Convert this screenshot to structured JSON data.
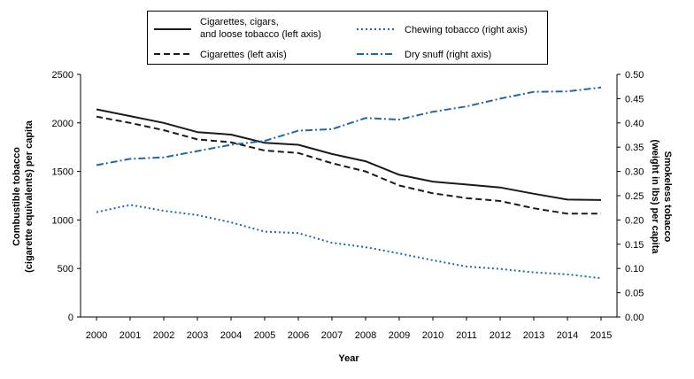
{
  "chart_data": {
    "type": "line",
    "xlabel": "Year",
    "ylabel_left": [
      "Combustible tobacco",
      "(cigarette equivalents) per capita"
    ],
    "ylabel_right": [
      "Smokeless tobacco",
      "(weight in lbs) per capita"
    ],
    "x": [
      "2000",
      "2001",
      "2002",
      "2003",
      "2004",
      "2005",
      "2006",
      "2007",
      "2008",
      "2009",
      "2010",
      "2011",
      "2012",
      "2013",
      "2014",
      "2015"
    ],
    "ylim_left": [
      0,
      2500
    ],
    "ylim_right": [
      0,
      0.5
    ],
    "yticks_left": [
      "0",
      "500",
      "1000",
      "1500",
      "2000",
      "2500"
    ],
    "yticks_right": [
      "0.00",
      "0.05",
      "0.10",
      "0.15",
      "0.20",
      "0.25",
      "0.30",
      "0.35",
      "0.40",
      "0.45",
      "0.50"
    ],
    "legend_position": "top",
    "series": [
      {
        "name_lines": [
          "Cigarettes, cigars,",
          "and loose tobacco (left axis)"
        ],
        "axis": "left",
        "style": "solid",
        "color": "#1a1a1a",
        "values": [
          2140,
          2070,
          2000,
          1905,
          1880,
          1795,
          1775,
          1680,
          1605,
          1465,
          1395,
          1365,
          1335,
          1270,
          1210,
          1205
        ]
      },
      {
        "name": "Cigarettes (left axis)",
        "axis": "left",
        "style": "dashed",
        "color": "#1a1a1a",
        "values": [
          2065,
          2000,
          1925,
          1830,
          1800,
          1715,
          1690,
          1585,
          1500,
          1355,
          1275,
          1225,
          1195,
          1120,
          1065,
          1065
        ]
      },
      {
        "name": "Chewing tobacco (right axis)",
        "axis": "right",
        "style": "dotted",
        "color": "#1f6aa5",
        "values": [
          0.216,
          0.231,
          0.219,
          0.21,
          0.195,
          0.176,
          0.173,
          0.153,
          0.144,
          0.131,
          0.117,
          0.104,
          0.099,
          0.092,
          0.088,
          0.08
        ]
      },
      {
        "name": "Dry snuff (right axis)",
        "axis": "right",
        "style": "dashdot",
        "color": "#1f6aa5",
        "values": [
          0.313,
          0.326,
          0.329,
          0.342,
          0.355,
          0.363,
          0.384,
          0.387,
          0.41,
          0.407,
          0.423,
          0.434,
          0.45,
          0.464,
          0.465,
          0.473
        ]
      }
    ]
  }
}
